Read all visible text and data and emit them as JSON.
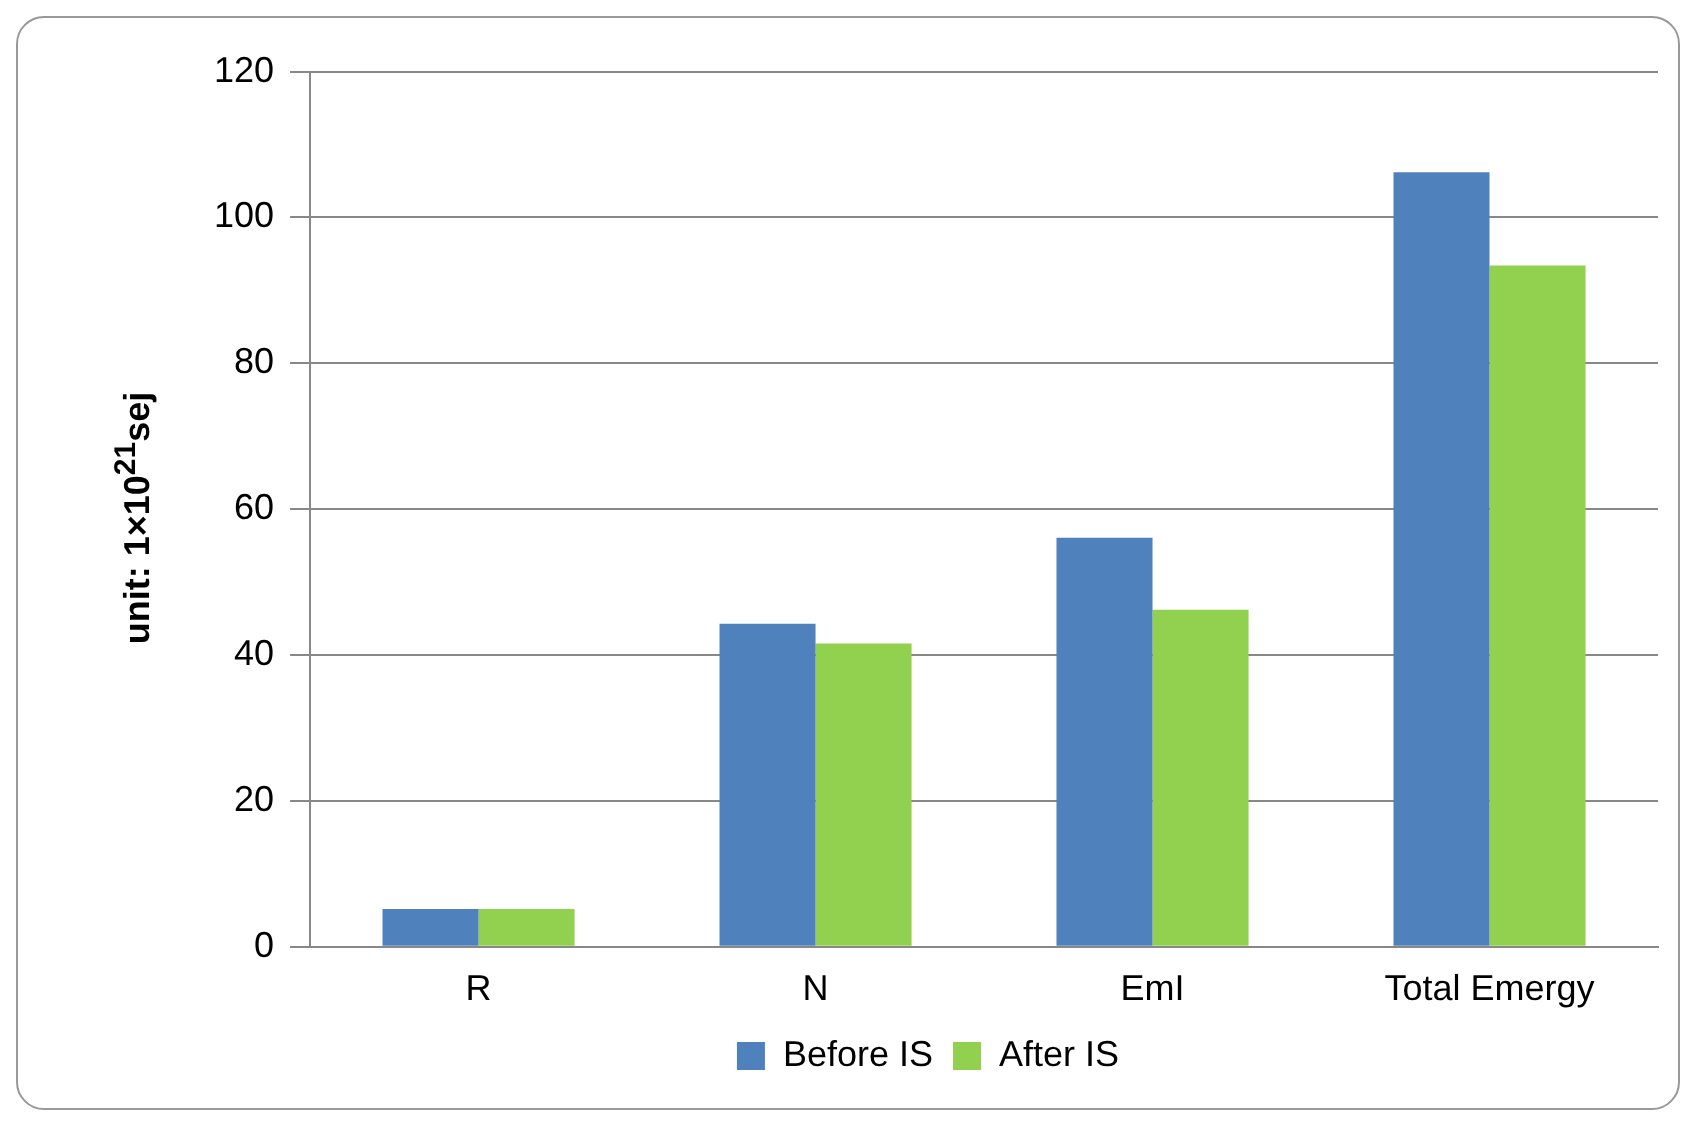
{
  "chart_data": {
    "type": "bar",
    "ylabel": "unit: 1×10$^{21}$sej",
    "categories": [
      "R",
      "N",
      "EmI",
      "Total Emergy"
    ],
    "series": [
      {
        "name": "Before IS",
        "color": "#4f81bd",
        "values": [
          5.2,
          44.3,
          56.1,
          106.2
        ]
      },
      {
        "name": "After IS",
        "color": "#92d050",
        "values": [
          5.2,
          41.6,
          46.2,
          93.4
        ]
      }
    ],
    "ylim": [
      0,
      120
    ],
    "yticks": [
      0,
      20,
      40,
      60,
      80,
      100,
      120
    ],
    "grid": "y",
    "legend": "bottom"
  }
}
